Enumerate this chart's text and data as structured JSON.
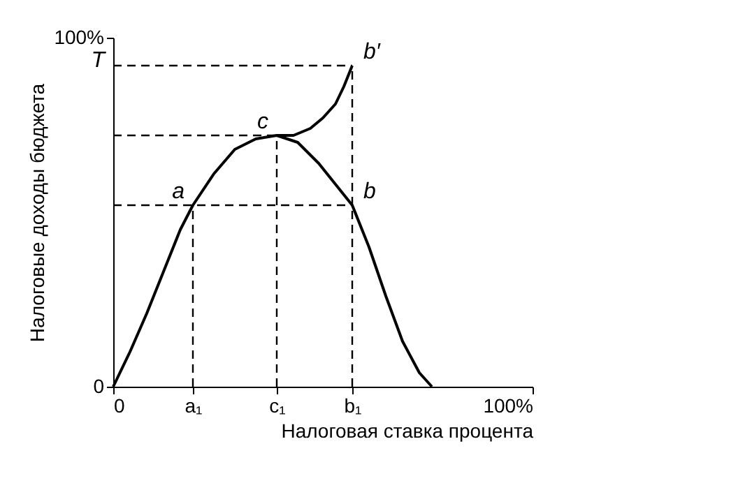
{
  "chart_data": {
    "type": "line",
    "xlabel": "Налоговая ставка процента",
    "ylabel": "Налоговые доходы бюджета",
    "xlim": [
      0,
      100
    ],
    "ylim": [
      0,
      100
    ],
    "xticks": [
      0,
      {
        "value": 19,
        "label": "a₁"
      },
      {
        "value": 39,
        "label": "c₁"
      },
      {
        "value": 57,
        "label": "b₁"
      },
      {
        "value": 100,
        "label": "100%"
      }
    ],
    "yticks": [
      0,
      {
        "value": 100,
        "label": "100%"
      }
    ],
    "grid": false,
    "marker": "none",
    "series": [
      {
        "color": "#000000",
        "line_style": "solid",
        "x": [
          0,
          4,
          8,
          12,
          16,
          19,
          24,
          29,
          34,
          39,
          44,
          49,
          53,
          57,
          61,
          65,
          69,
          73,
          76
        ],
        "values": [
          0,
          10,
          21,
          33,
          45,
          52,
          61,
          68,
          71,
          72,
          70,
          64,
          58,
          52,
          40,
          26,
          13,
          4,
          0
        ]
      },
      {
        "color": "#000000",
        "line_style": "solid",
        "x": [
          39,
          43,
          47,
          50,
          53,
          55,
          57
        ],
        "values": [
          72,
          72,
          74,
          77,
          81,
          86,
          92
        ]
      },
      {
        "color": "#000000",
        "line_style": "dashed",
        "x": [
          0,
          57
        ],
        "values": [
          52,
          52
        ]
      },
      {
        "color": "#000000",
        "line_style": "dashed",
        "x": [
          0,
          39
        ],
        "values": [
          72,
          72
        ]
      },
      {
        "color": "#000000",
        "line_style": "dashed",
        "x": [
          0,
          57
        ],
        "values": [
          92,
          92
        ]
      },
      {
        "color": "#000000",
        "line_style": "dashed",
        "x": [
          19,
          19
        ],
        "values": [
          0,
          52
        ]
      },
      {
        "color": "#000000",
        "line_style": "dashed",
        "x": [
          39,
          39
        ],
        "values": [
          0,
          72
        ]
      },
      {
        "color": "#000000",
        "line_style": "dashed",
        "x": [
          57,
          57
        ],
        "values": [
          0,
          92
        ]
      }
    ],
    "annotations": [
      "T",
      {
        "text": "a",
        "x": 19,
        "y": 52
      },
      {
        "text": "c",
        "x": 39,
        "y": 72
      },
      {
        "text": "b",
        "x": 57,
        "y": 52
      },
      {
        "text": "b′",
        "x": 57,
        "y": 92
      }
    ]
  }
}
